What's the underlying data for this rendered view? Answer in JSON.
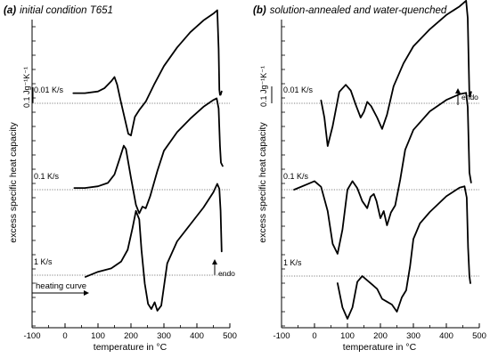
{
  "chart_data": [
    {
      "type": "line",
      "panel_tag": "(a)",
      "title": "initial condition T651",
      "xlabel": "temperature in °C",
      "ylabel": "excess specific heat capacity",
      "xlim": [
        -100,
        500
      ],
      "x_ticks": [
        "-100",
        "0",
        "100",
        "200",
        "300",
        "400",
        "500"
      ],
      "scale_bar_label": "0.1 Jg⁻¹K⁻¹",
      "endo_label": "endo",
      "heating_label": "heating curve",
      "grid": false,
      "series": [
        {
          "name": "0.01 K/s",
          "x": [
            25,
            60,
            100,
            120,
            140,
            150,
            158,
            168,
            180,
            192,
            200,
            212,
            225,
            245,
            270,
            300,
            340,
            380,
            420,
            450,
            462,
            466,
            468,
            470,
            472,
            475
          ],
          "y": [
            0.06,
            0.06,
            0.07,
            0.09,
            0.13,
            0.155,
            0.11,
            0.02,
            -0.08,
            -0.18,
            -0.19,
            -0.08,
            -0.04,
            0.01,
            0.11,
            0.22,
            0.33,
            0.42,
            0.49,
            0.53,
            0.55,
            0.32,
            0.08,
            0.05,
            0.05,
            0.07
          ]
        },
        {
          "name": "0.1 K/s",
          "x": [
            28,
            60,
            100,
            130,
            150,
            165,
            178,
            185,
            200,
            215,
            225,
            235,
            245,
            258,
            280,
            300,
            340,
            380,
            420,
            450,
            460,
            466,
            470,
            473,
            478
          ],
          "y": [
            0.01,
            0.01,
            0.02,
            0.04,
            0.09,
            0.18,
            0.26,
            0.24,
            0.07,
            -0.09,
            -0.14,
            -0.1,
            -0.11,
            -0.04,
            0.11,
            0.23,
            0.34,
            0.42,
            0.49,
            0.53,
            0.54,
            0.48,
            0.26,
            0.16,
            0.14
          ]
        },
        {
          "name": "1 K/s",
          "x": [
            62,
            100,
            140,
            170,
            190,
            205,
            215,
            225,
            232,
            242,
            252,
            262,
            272,
            280,
            292,
            310,
            340,
            380,
            420,
            450,
            462,
            468,
            472,
            475
          ],
          "y": [
            -0.01,
            0.02,
            0.04,
            0.08,
            0.15,
            0.28,
            0.38,
            0.33,
            0.15,
            -0.05,
            -0.17,
            -0.2,
            -0.16,
            -0.21,
            -0.18,
            0.07,
            0.2,
            0.3,
            0.4,
            0.49,
            0.54,
            0.51,
            0.38,
            0.14
          ]
        }
      ]
    },
    {
      "type": "line",
      "panel_tag": "(b)",
      "title": "solution-annealed and water-quenched",
      "xlabel": "temperature in °C",
      "ylabel": "excess specific heat capacity",
      "xlim": [
        -100,
        500
      ],
      "x_ticks": [
        "-100",
        "0",
        "100",
        "200",
        "300",
        "400",
        "500"
      ],
      "scale_bar_label": "0.1 Jg⁻¹K⁻¹",
      "endo_label": "endo",
      "grid": false,
      "series": [
        {
          "name": "0.01 K/s",
          "x": [
            20,
            30,
            40,
            55,
            75,
            95,
            110,
            125,
            140,
            150,
            160,
            172,
            190,
            205,
            220,
            240,
            270,
            300,
            350,
            400,
            440,
            460,
            465,
            468,
            470,
            472,
            475
          ],
          "y": [
            0.02,
            -0.1,
            -0.3,
            -0.16,
            0.08,
            0.13,
            0.09,
            -0.01,
            -0.1,
            -0.06,
            0.01,
            -0.02,
            -0.1,
            -0.18,
            -0.08,
            0.12,
            0.28,
            0.4,
            0.52,
            0.62,
            0.68,
            0.72,
            0.6,
            0.25,
            0.05,
            0.05,
            0.08
          ]
        },
        {
          "name": "0.1 K/s",
          "x": [
            -62,
            -20,
            0,
            20,
            40,
            55,
            70,
            85,
            100,
            115,
            130,
            145,
            160,
            170,
            180,
            188,
            200,
            210,
            220,
            232,
            245,
            260,
            275,
            300,
            350,
            400,
            440,
            460,
            465,
            470,
            475
          ],
          "y": [
            0.0,
            0.04,
            0.06,
            0.02,
            -0.15,
            -0.38,
            -0.45,
            -0.28,
            0.0,
            0.06,
            0.01,
            -0.08,
            -0.13,
            -0.05,
            -0.03,
            -0.08,
            -0.2,
            -0.15,
            -0.25,
            -0.16,
            -0.11,
            0.07,
            0.28,
            0.42,
            0.55,
            0.63,
            0.67,
            0.68,
            0.58,
            0.12,
            0.05
          ]
        },
        {
          "name": "1 K/s",
          "x": [
            70,
            85,
            100,
            115,
            130,
            145,
            160,
            175,
            190,
            205,
            220,
            235,
            250,
            265,
            278,
            290,
            300,
            320,
            350,
            400,
            440,
            455,
            462,
            466,
            470,
            473
          ],
          "y": [
            -0.05,
            -0.22,
            -0.3,
            -0.22,
            -0.04,
            0.0,
            -0.03,
            -0.06,
            -0.09,
            -0.16,
            -0.18,
            -0.2,
            -0.25,
            -0.15,
            -0.1,
            0.07,
            0.26,
            0.37,
            0.45,
            0.56,
            0.62,
            0.63,
            0.55,
            0.2,
            0.0,
            -0.05
          ]
        }
      ]
    }
  ]
}
